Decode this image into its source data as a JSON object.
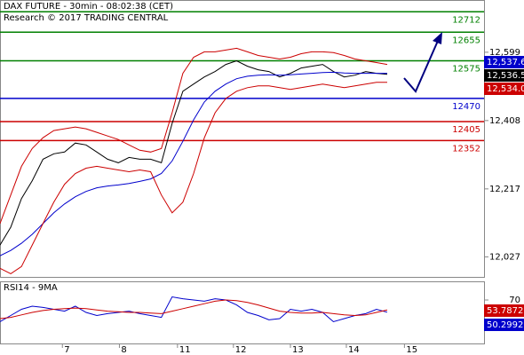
{
  "chart_data": [
    {
      "type": "line",
      "title": "DAX FUTURE - 30min - 08:02:38 (CET)",
      "subtitle": "Research © 2017 TRADING CENTRAL",
      "x": [
        0,
        1,
        2,
        3,
        4,
        5,
        6,
        7,
        8,
        9,
        10,
        11,
        12,
        13,
        14,
        15,
        16,
        17,
        18,
        19,
        20,
        21,
        22,
        23,
        24,
        25,
        26,
        27,
        28,
        29,
        30,
        31,
        32,
        33,
        34,
        35,
        36
      ],
      "xlim": [
        0,
        45
      ],
      "ylim": [
        11971,
        12745
      ],
      "yticks": [
        {
          "value": 12599,
          "label": "12,599"
        },
        {
          "value": 12408,
          "label": "12,408"
        },
        {
          "value": 12217,
          "label": "12,217"
        },
        {
          "value": 12027,
          "label": "12,027"
        }
      ],
      "series": [
        {
          "color": "#000000",
          "values": [
            12060,
            12110,
            12190,
            12240,
            12300,
            12315,
            12320,
            12345,
            12340,
            12320,
            12300,
            12290,
            12305,
            12300,
            12300,
            12290,
            12400,
            12490,
            12510,
            12530,
            12545,
            12565,
            12575,
            12560,
            12550,
            12545,
            12530,
            12540,
            12555,
            12560,
            12565,
            12545,
            12530,
            12535,
            12545,
            12540,
            12537
          ]
        },
        {
          "color": "#0000cc",
          "values": [
            12030,
            12045,
            12065,
            12090,
            12120,
            12150,
            12175,
            12195,
            12210,
            12220,
            12225,
            12228,
            12232,
            12238,
            12245,
            12260,
            12295,
            12350,
            12410,
            12460,
            12490,
            12510,
            12525,
            12532,
            12535,
            12536,
            12535,
            12536,
            12538,
            12540,
            12542,
            12543,
            12541,
            12540,
            12540,
            12540,
            12540
          ]
        },
        {
          "color": "#cc0000",
          "values": [
            12120,
            12200,
            12280,
            12330,
            12360,
            12380,
            12385,
            12390,
            12385,
            12375,
            12365,
            12355,
            12340,
            12325,
            12320,
            12330,
            12430,
            12540,
            12585,
            12600,
            12600,
            12605,
            12610,
            12600,
            12590,
            12585,
            12580,
            12585,
            12595,
            12600,
            12600,
            12598,
            12590,
            12580,
            12575,
            12570,
            12565
          ]
        },
        {
          "color": "#cc0000",
          "values": [
            11995,
            11980,
            12000,
            12060,
            12120,
            12180,
            12230,
            12260,
            12275,
            12280,
            12275,
            12270,
            12265,
            12270,
            12265,
            12200,
            12150,
            12180,
            12260,
            12360,
            12430,
            12470,
            12490,
            12500,
            12505,
            12505,
            12500,
            12495,
            12500,
            12505,
            12510,
            12505,
            12500,
            12505,
            12510,
            12515,
            12515
          ]
        }
      ],
      "levels": [
        {
          "value": 12712,
          "color": "#008000"
        },
        {
          "value": 12655,
          "color": "#008000"
        },
        {
          "value": 12575,
          "color": "#008000"
        },
        {
          "value": 12470,
          "color": "#0000cc"
        },
        {
          "value": 12405,
          "color": "#cc0000"
        },
        {
          "value": 12352,
          "color": "#cc0000"
        }
      ],
      "price_tags": [
        {
          "value": 12537.6,
          "label": "12,537.6",
          "color": "#0000cc"
        },
        {
          "value": 12536.5,
          "label": "12,536.5",
          "color": "#000000"
        },
        {
          "value": 12534.0,
          "label": "12,534.0",
          "color": "#cc0000"
        }
      ]
    },
    {
      "type": "line",
      "title": "RSI14 - 9MA",
      "x": [
        0,
        1,
        2,
        3,
        4,
        5,
        6,
        7,
        8,
        9,
        10,
        11,
        12,
        13,
        14,
        15,
        16,
        17,
        18,
        19,
        20,
        21,
        22,
        23,
        24,
        25,
        26,
        27,
        28,
        29,
        30,
        31,
        32,
        33,
        34,
        35,
        36
      ],
      "xlim": [
        0,
        45
      ],
      "ylim": [
        0,
        100
      ],
      "yticks": [
        70
      ],
      "xticks": [
        {
          "value": 5.8,
          "label": "7"
        },
        {
          "value": 11.1,
          "label": "8"
        },
        {
          "value": 16.5,
          "label": "11"
        },
        {
          "value": 21.7,
          "label": "12"
        },
        {
          "value": 27,
          "label": "13"
        },
        {
          "value": 32.2,
          "label": "14"
        },
        {
          "value": 37.6,
          "label": "15"
        }
      ],
      "series": [
        {
          "color": "#0000cc",
          "values": [
            35,
            45,
            55,
            60,
            58,
            55,
            52,
            60,
            50,
            45,
            48,
            50,
            52,
            48,
            45,
            42,
            75,
            72,
            70,
            68,
            72,
            70,
            62,
            50,
            45,
            38,
            40,
            55,
            52,
            55,
            50,
            35,
            40,
            45,
            48,
            55,
            50.2992
          ]
        },
        {
          "color": "#cc0000",
          "values": [
            40,
            42,
            46,
            50,
            53,
            55,
            56,
            57,
            56,
            54,
            52,
            51,
            50,
            50,
            49,
            48,
            52,
            56,
            60,
            64,
            68,
            70,
            69,
            66,
            62,
            57,
            52,
            50,
            49,
            49,
            50,
            48,
            46,
            45,
            46,
            50,
            53.7872
          ]
        }
      ],
      "value_tags": [
        {
          "value": 53.7872,
          "color": "#cc0000"
        },
        {
          "value": 50.2992,
          "color": "#0000cc"
        }
      ]
    }
  ]
}
